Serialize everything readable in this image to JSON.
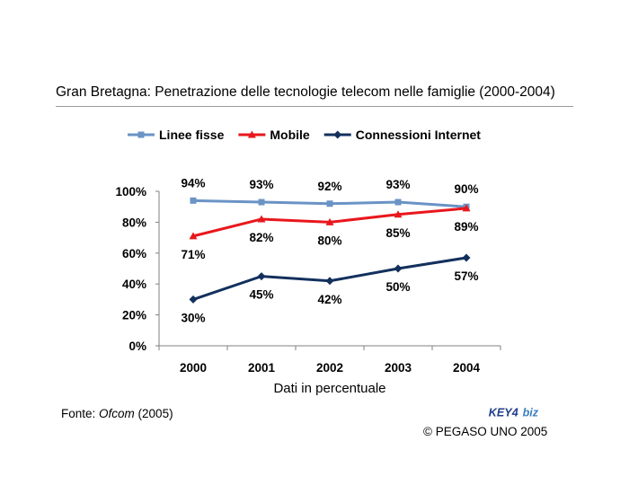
{
  "title": "Gran Bretagna: Penetrazione delle tecnologie telecom nelle famiglie (2000-2004)",
  "source": {
    "prefix": "Fonte: ",
    "publisher": "Ofcom",
    "year": " (2005)"
  },
  "copyright": "© PEGASO UNO 2005",
  "logo": {
    "text": "KEY4biz",
    "colors": {
      "key": "#1f3f8a",
      "biz": "#3a7fc1"
    }
  },
  "chart_data": {
    "type": "line",
    "xlabel": "Dati in percentuale",
    "ylabel": "",
    "categories": [
      "2000",
      "2001",
      "2002",
      "2003",
      "2004"
    ],
    "yticks": [
      "0%",
      "20%",
      "40%",
      "60%",
      "80%",
      "100%"
    ],
    "ylim": [
      0,
      100
    ],
    "grid": false,
    "legend_position": "top",
    "series": [
      {
        "name": "Linee fisse",
        "color": "#6a93c6",
        "marker": "square",
        "values": [
          94,
          93,
          92,
          93,
          90
        ],
        "labels": [
          "94%",
          "93%",
          "92%",
          "93%",
          "90%"
        ],
        "label_side": "above"
      },
      {
        "name": "Mobile",
        "color": "#e8171c",
        "marker": "triangle",
        "values": [
          71,
          82,
          80,
          85,
          89
        ],
        "labels": [
          "71%",
          "82%",
          "80%",
          "85%",
          "89%"
        ],
        "label_side": "below"
      },
      {
        "name": "Connessioni Internet",
        "color": "#13305d",
        "marker": "diamond",
        "values": [
          30,
          45,
          42,
          50,
          57
        ],
        "labels": [
          "30%",
          "45%",
          "42%",
          "50%",
          "57%"
        ],
        "label_side": "below"
      }
    ]
  }
}
